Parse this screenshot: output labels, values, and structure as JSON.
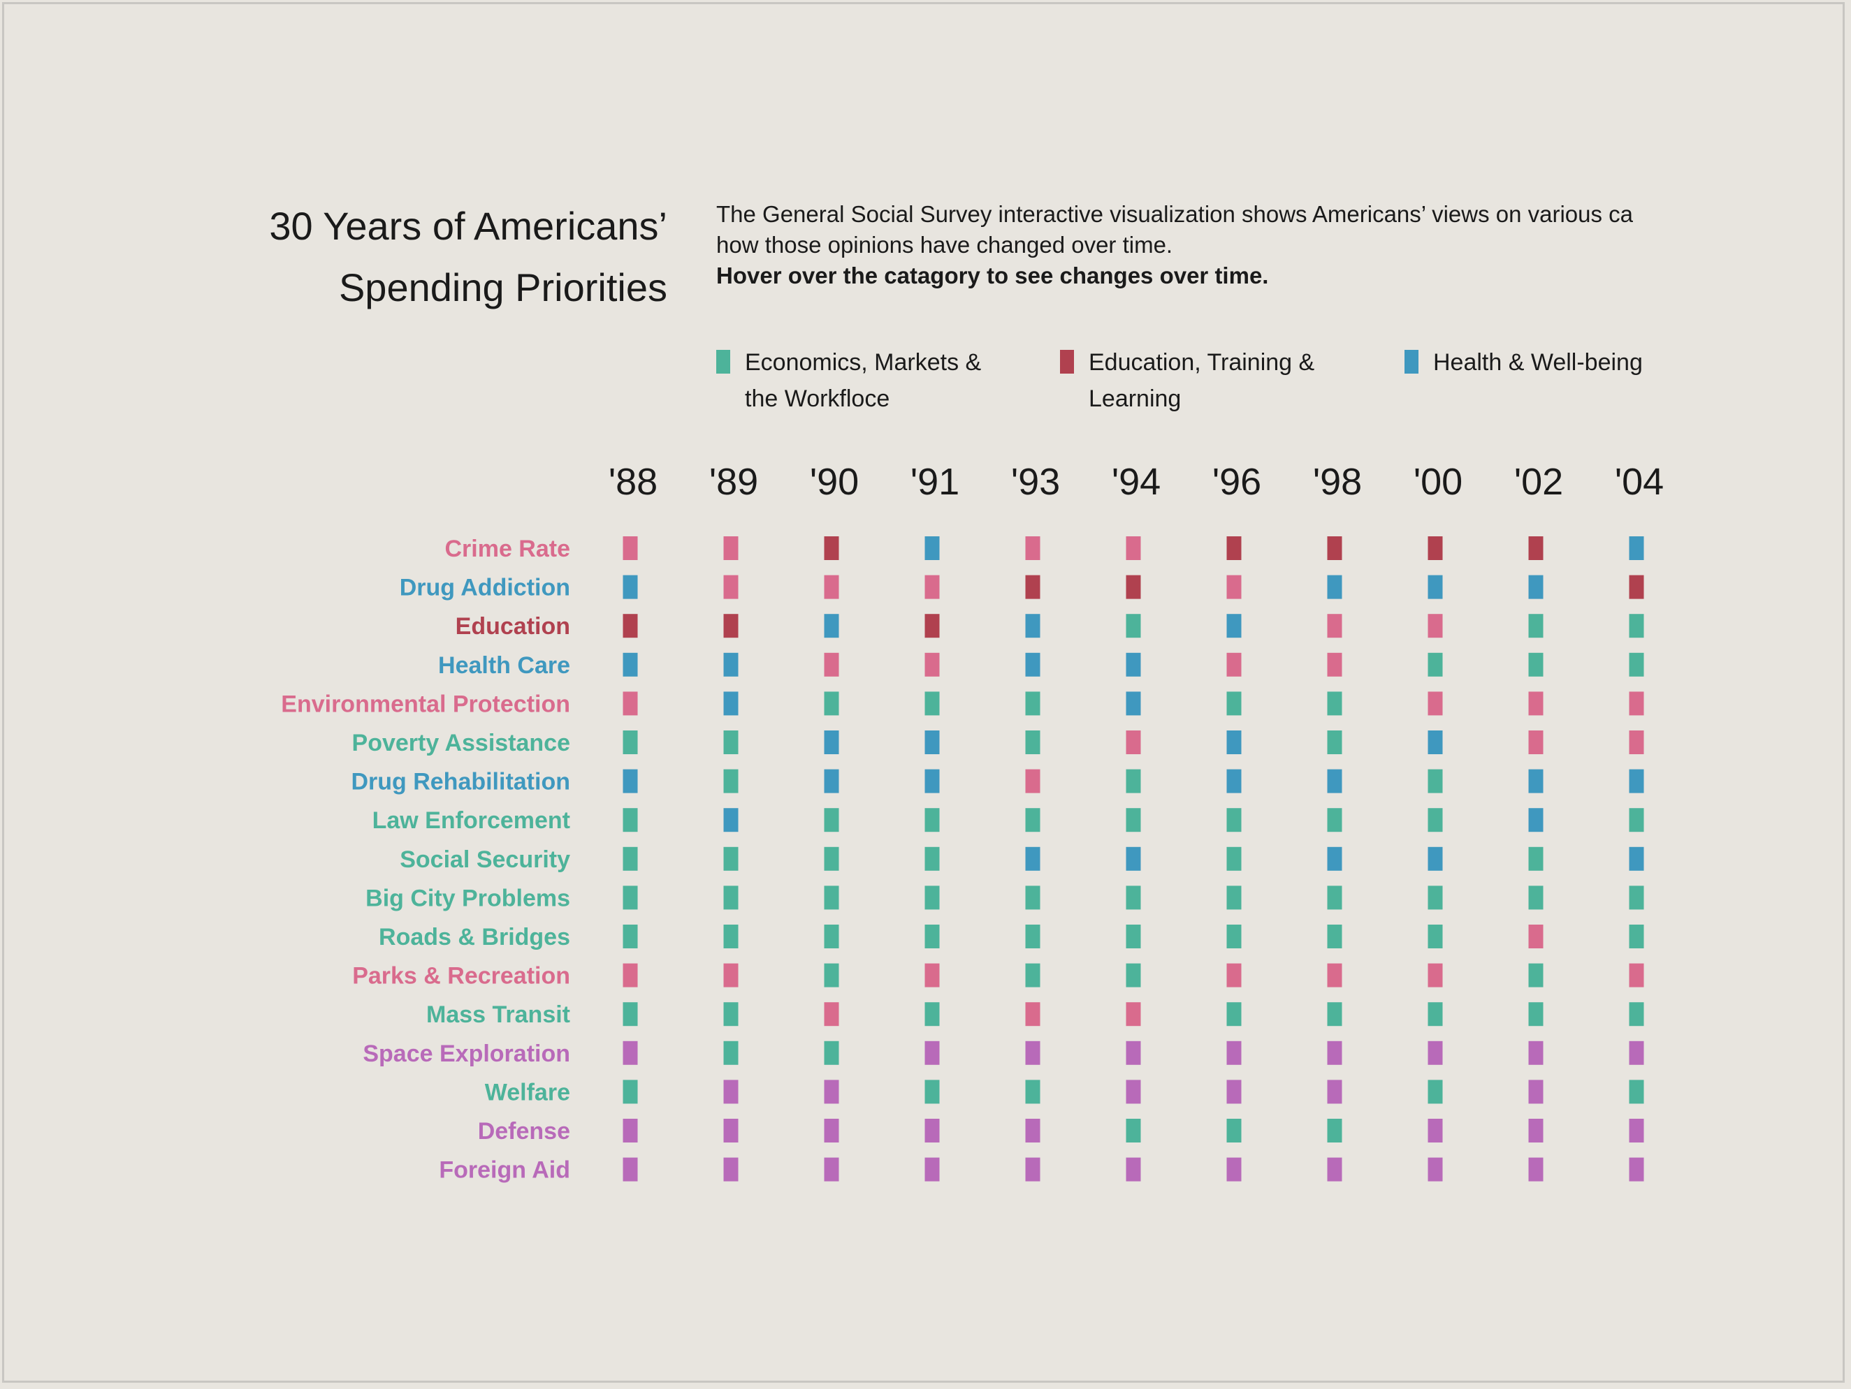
{
  "title": {
    "line1": "30 Years of Americans’",
    "line2": "Spending Priorities"
  },
  "description": {
    "line1": "The General Social Survey interactive visualization shows Americans’ views on various ca",
    "line2": "how those opinions have changed over time.",
    "line3": "Hover over the catagory to see changes over time."
  },
  "legend": [
    {
      "line1": "Economics, Markets &",
      "line2": "the Workfloce",
      "color": "#4db39a"
    },
    {
      "line1": "Education, Training &",
      "line2": "Learning",
      "color": "#b0414f"
    },
    {
      "line1": "Health & Well-being",
      "line2": "",
      "color": "#3f98bf"
    }
  ],
  "colors": {
    "E": "#4db39a",
    "T": "#b0414f",
    "H": "#3f98bf",
    "P": "#d96b8d",
    "V": "#b86ab9"
  },
  "chart_data": {
    "type": "table",
    "x": [
      "'88",
      "'89",
      "'90",
      "'91",
      "'93",
      "'94",
      "'96",
      "'98",
      "'00",
      "'02",
      "'04"
    ],
    "rows": [
      {
        "category": "Crime Rate",
        "label_color": "P",
        "cells": [
          "P",
          "P",
          "T",
          "H",
          "P",
          "P",
          "T",
          "T",
          "T",
          "T",
          "H"
        ]
      },
      {
        "category": "Drug Addiction",
        "label_color": "H",
        "cells": [
          "H",
          "P",
          "P",
          "P",
          "T",
          "T",
          "P",
          "H",
          "H",
          "H",
          "T"
        ]
      },
      {
        "category": "Education",
        "label_color": "T",
        "cells": [
          "T",
          "T",
          "H",
          "T",
          "H",
          "E",
          "H",
          "P",
          "P",
          "E",
          "E"
        ]
      },
      {
        "category": "Health Care",
        "label_color": "H",
        "cells": [
          "H",
          "H",
          "P",
          "P",
          "H",
          "H",
          "P",
          "P",
          "E",
          "E",
          "E"
        ]
      },
      {
        "category": "Environmental Protection",
        "label_color": "P",
        "cells": [
          "P",
          "H",
          "E",
          "E",
          "E",
          "H",
          "E",
          "E",
          "P",
          "P",
          "P"
        ]
      },
      {
        "category": "Poverty Assistance",
        "label_color": "E",
        "cells": [
          "E",
          "E",
          "H",
          "H",
          "E",
          "P",
          "H",
          "E",
          "H",
          "P",
          "P"
        ]
      },
      {
        "category": "Drug Rehabilitation",
        "label_color": "H",
        "cells": [
          "H",
          "E",
          "H",
          "H",
          "P",
          "E",
          "H",
          "H",
          "E",
          "H",
          "H"
        ]
      },
      {
        "category": "Law Enforcement",
        "label_color": "E",
        "cells": [
          "E",
          "H",
          "E",
          "E",
          "E",
          "E",
          "E",
          "E",
          "E",
          "H",
          "E"
        ]
      },
      {
        "category": "Social Security",
        "label_color": "E",
        "cells": [
          "E",
          "E",
          "E",
          "E",
          "H",
          "H",
          "E",
          "H",
          "H",
          "E",
          "H"
        ]
      },
      {
        "category": "Big City Problems",
        "label_color": "E",
        "cells": [
          "E",
          "E",
          "E",
          "E",
          "E",
          "E",
          "E",
          "E",
          "E",
          "E",
          "E"
        ]
      },
      {
        "category": "Roads & Bridges",
        "label_color": "E",
        "cells": [
          "E",
          "E",
          "E",
          "E",
          "E",
          "E",
          "E",
          "E",
          "E",
          "P",
          "E"
        ]
      },
      {
        "category": "Parks & Recreation",
        "label_color": "P",
        "cells": [
          "P",
          "P",
          "E",
          "P",
          "E",
          "E",
          "P",
          "P",
          "P",
          "E",
          "P"
        ]
      },
      {
        "category": "Mass Transit",
        "label_color": "E",
        "cells": [
          "E",
          "E",
          "P",
          "E",
          "P",
          "P",
          "E",
          "E",
          "E",
          "E",
          "E"
        ]
      },
      {
        "category": "Space Exploration",
        "label_color": "V",
        "cells": [
          "V",
          "E",
          "E",
          "V",
          "V",
          "V",
          "V",
          "V",
          "V",
          "V",
          "V"
        ]
      },
      {
        "category": "Welfare",
        "label_color": "E",
        "cells": [
          "E",
          "V",
          "V",
          "E",
          "E",
          "V",
          "V",
          "V",
          "E",
          "V",
          "E"
        ]
      },
      {
        "category": "Defense",
        "label_color": "V",
        "cells": [
          "V",
          "V",
          "V",
          "V",
          "V",
          "E",
          "E",
          "E",
          "V",
          "V",
          "V"
        ]
      },
      {
        "category": "Foreign Aid",
        "label_color": "V",
        "cells": [
          "V",
          "V",
          "V",
          "V",
          "V",
          "V",
          "V",
          "V",
          "V",
          "V",
          "V"
        ]
      }
    ]
  }
}
